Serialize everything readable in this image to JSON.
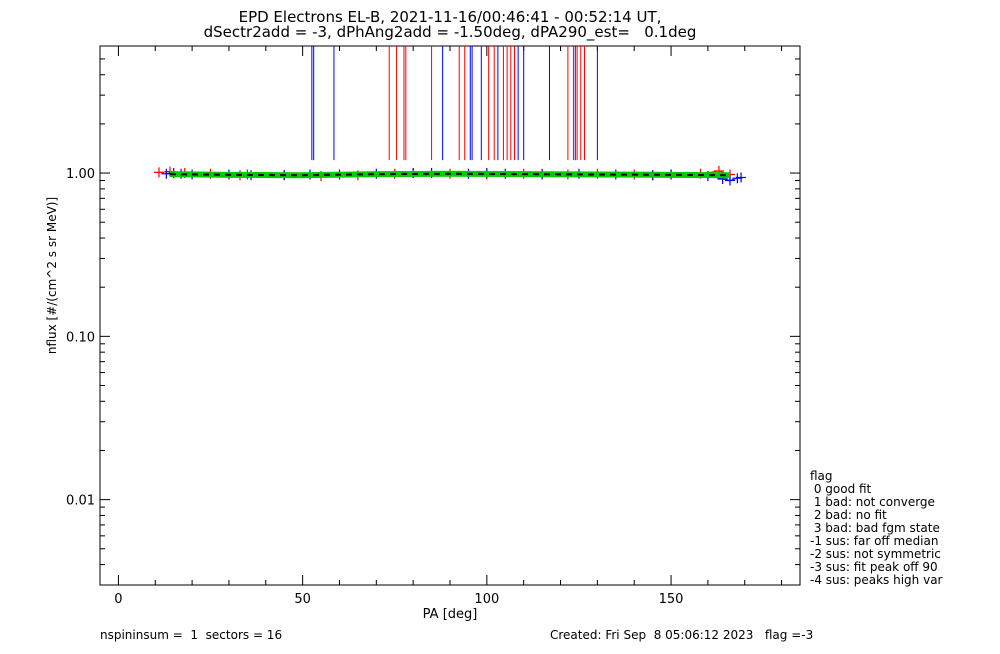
{
  "chart_data": {
    "type": "scatter",
    "title_line1": "EPD Electrons EL-B, 2021-11-16/00:46:41 - 00:52:14 UT,",
    "title_line2": "dSectr2add = -3, dPhAng2add = -1.50deg, dPA290_est=   0.1deg",
    "xlabel": "PA [deg]",
    "ylabel": "nflux [#/(cm^2 s sr MeV)]",
    "xlim": [
      -5,
      185
    ],
    "ylim": [
      0.003,
      6
    ],
    "ylog": true,
    "x_ticks": [
      0,
      50,
      100,
      150
    ],
    "y_ticks": [
      {
        "value": 1.0,
        "label": "1.00"
      },
      {
        "value": 0.1,
        "label": "0.10"
      },
      {
        "value": 0.01,
        "label": "0.01"
      }
    ],
    "series": [
      {
        "color": "#ff0000",
        "marker": "plus",
        "x": [
          11,
          14,
          18,
          25,
          33,
          35,
          45,
          55,
          65,
          75,
          80,
          90,
          100,
          110,
          115,
          122,
          130,
          140,
          145,
          150,
          158,
          163,
          166
        ],
        "y": [
          1.01,
          1.02,
          1.0,
          0.99,
          0.97,
          0.98,
          0.97,
          0.96,
          0.97,
          0.99,
          1.0,
          0.99,
          0.98,
          0.99,
          0.99,
          0.98,
          0.99,
          0.98,
          0.97,
          0.98,
          0.99,
          1.03,
          0.98
        ]
      },
      {
        "color": "#0000ff",
        "marker": "plus",
        "x": [
          13,
          15,
          17,
          20,
          30,
          36,
          45,
          52,
          60,
          70,
          80,
          85,
          95,
          100,
          105,
          115,
          125,
          135,
          145,
          150,
          160,
          164,
          166,
          168,
          169
        ],
        "y": [
          0.99,
          1.0,
          0.99,
          0.98,
          0.98,
          0.97,
          0.97,
          0.98,
          0.98,
          0.99,
          1.0,
          1.0,
          0.99,
          1.0,
          0.99,
          0.98,
          0.99,
          0.98,
          0.97,
          0.98,
          0.96,
          0.92,
          0.9,
          0.93,
          0.94
        ]
      },
      {
        "color": "#00cc00",
        "style": "thick-line",
        "x": [
          14,
          30,
          50,
          70,
          90,
          110,
          130,
          150,
          166
        ],
        "y": [
          0.985,
          0.975,
          0.97,
          0.985,
          0.99,
          0.985,
          0.98,
          0.975,
          0.97
        ]
      },
      {
        "color": "#000000",
        "style": "dashed",
        "x": [
          14,
          30,
          50,
          70,
          90,
          110,
          130,
          150,
          166
        ],
        "y": [
          0.985,
          0.975,
          0.97,
          0.985,
          0.99,
          0.985,
          0.98,
          0.975,
          0.97
        ]
      }
    ],
    "vlines": [
      {
        "x": 52.5,
        "color": "#0000ff"
      },
      {
        "x": 53.0,
        "color": "#0000ff"
      },
      {
        "x": 58.5,
        "color": "#0000ff"
      },
      {
        "x": 73.5,
        "color": "#ff0000"
      },
      {
        "x": 75.5,
        "color": "#ff0000"
      },
      {
        "x": 77.5,
        "color": "#ff0000"
      },
      {
        "x": 78.0,
        "color": "#ff0000"
      },
      {
        "x": 85.0,
        "color": "#ff0000"
      },
      {
        "x": 88.0,
        "color": "#0000ff"
      },
      {
        "x": 92.5,
        "color": "#ff0000"
      },
      {
        "x": 94.0,
        "color": "#ff0000"
      },
      {
        "x": 95.5,
        "color": "#0000ff"
      },
      {
        "x": 96.0,
        "color": "#0000ff"
      },
      {
        "x": 98.5,
        "color": "#0000ff"
      },
      {
        "x": 100.5,
        "color": "#ff0000"
      },
      {
        "x": 102.0,
        "color": "#ff0000"
      },
      {
        "x": 103.0,
        "color": "#0000ff"
      },
      {
        "x": 104.5,
        "color": "#ff0000"
      },
      {
        "x": 105.5,
        "color": "#ff0000"
      },
      {
        "x": 106.5,
        "color": "#ff0000"
      },
      {
        "x": 107.5,
        "color": "#ff0000"
      },
      {
        "x": 108.5,
        "color": "#0000ff"
      },
      {
        "x": 110.0,
        "color": "#0000ff"
      },
      {
        "x": 117.0,
        "color": "#0000ff"
      },
      {
        "x": 122.0,
        "color": "#ff0000"
      },
      {
        "x": 123.5,
        "color": "#ff0000"
      },
      {
        "x": 124.0,
        "color": "#0000ff"
      },
      {
        "x": 124.5,
        "color": "#ff0000"
      },
      {
        "x": 125.5,
        "color": "#ff0000"
      },
      {
        "x": 126.5,
        "color": "#ff0000"
      },
      {
        "x": 130.0,
        "color": "#0000ff"
      }
    ],
    "vline_bottom_value": 1.2
  },
  "legend": {
    "title": "flag",
    "items": [
      " 0 good fit",
      " 1 bad: not converge",
      " 2 bad: no fit",
      " 3 bad: bad fgm state",
      "-1 sus: far off median",
      "-2 sus: not symmetric",
      "-3 sus: fit peak off 90",
      "-4 sus: peaks high var"
    ]
  },
  "footer": {
    "left": "nspininsum =  1  sectors = 16",
    "right": "Created: Fri Sep  8 05:06:12 2023   flag =-3"
  }
}
